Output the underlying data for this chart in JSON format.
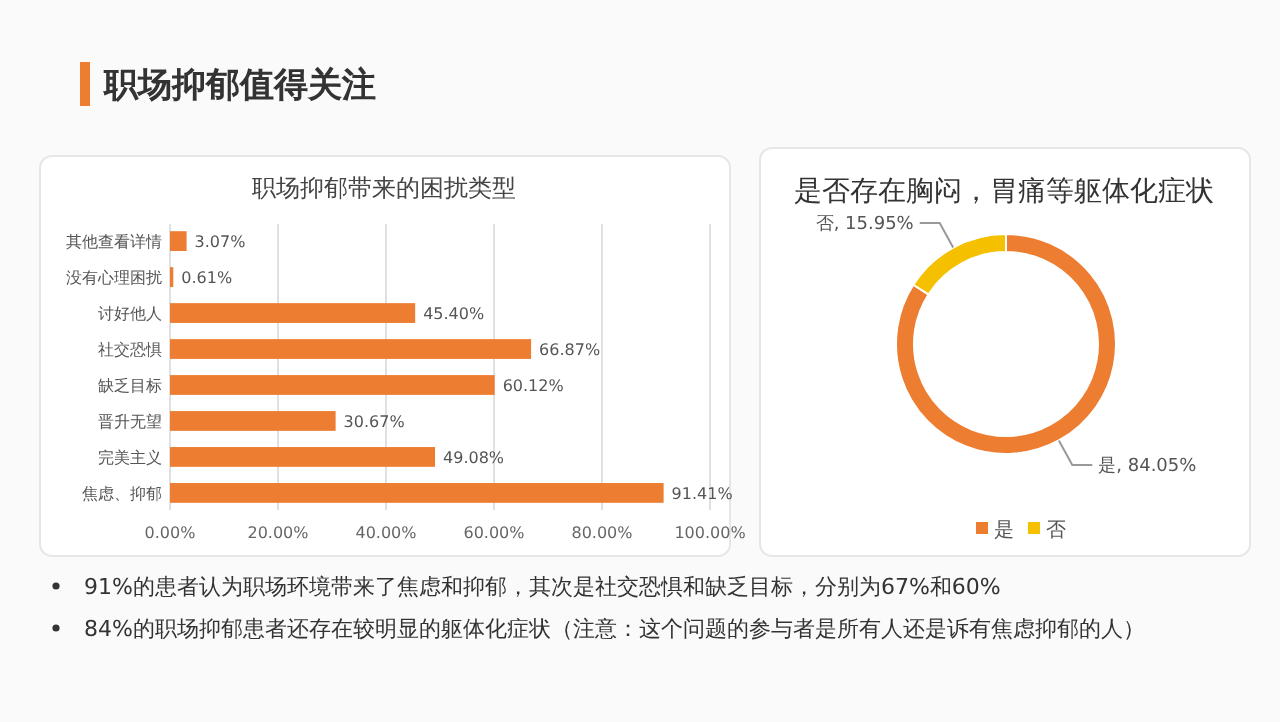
{
  "chart_data": [
    {
      "type": "bar",
      "orientation": "horizontal",
      "title": "职场抑郁带来的困扰类型",
      "categories": [
        "其他查看详情",
        "没有心理困扰",
        "讨好他人",
        "社交恐惧",
        "缺乏目标",
        "晋升无望",
        "完美主义",
        "焦虑、抑郁"
      ],
      "values": [
        3.07,
        0.61,
        45.4,
        66.87,
        60.12,
        30.67,
        49.08,
        91.41
      ],
      "value_labels": [
        "3.07%",
        "0.61%",
        "45.40%",
        "66.87%",
        "60.12%",
        "30.67%",
        "49.08%",
        "91.41%"
      ],
      "color": "#ed7d31",
      "xlim": [
        0,
        100
      ],
      "xticks": [
        {
          "value": 0,
          "label": "0.00%"
        },
        {
          "value": 20,
          "label": "20.00%"
        },
        {
          "value": 40,
          "label": "40.00%"
        },
        {
          "value": 60,
          "label": "60.00%"
        },
        {
          "value": 80,
          "label": "80.00%"
        },
        {
          "value": 100,
          "label": "100.00%"
        }
      ],
      "grid": "x",
      "annotations": [
        "职场抑郁值得关注",
        "91%的患者认为职场环境带来了焦虑和抑郁，其次是社交恐惧和缺乏目标，分别为67%和60%",
        "84%的职场抑郁患者还存在较明显的躯体化症状（注意：这个问题的参与者是所有人还是诉有焦虑抑郁的人）"
      ]
    },
    {
      "type": "donut",
      "title": "是否存在胸闷，胃痛等躯体化症状",
      "categories": [
        "是",
        "否"
      ],
      "values": [
        84.05,
        15.95
      ],
      "value_labels": [
        "是, 84.05%",
        "否, 15.95%"
      ],
      "colors": [
        "#ed7d31",
        "#f5c000"
      ],
      "legend": "bottom"
    }
  ]
}
